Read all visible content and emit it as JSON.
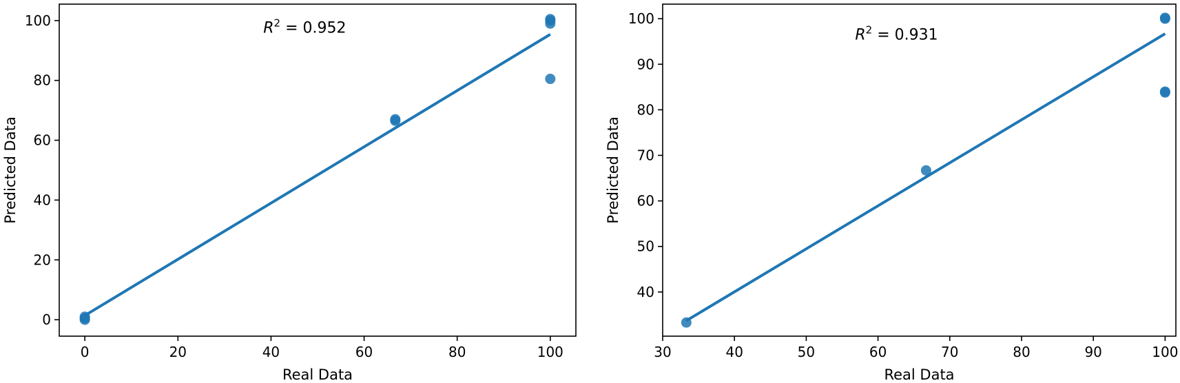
{
  "chart_data": [
    {
      "type": "scatter",
      "title": "",
      "xlabel": "Real Data",
      "ylabel": "Predicted Data",
      "xlim": [
        -5.5,
        105.5
      ],
      "ylim": [
        -5.5,
        105.5
      ],
      "xticks": [
        0,
        20,
        40,
        60,
        80,
        100
      ],
      "yticks": [
        0,
        20,
        40,
        60,
        80,
        100
      ],
      "annotation": {
        "prefix": "R",
        "exponent": "2",
        "text": " = 0.952"
      },
      "grid": false,
      "legend": "none",
      "series": [
        {
          "kind": "scatter",
          "color": "#1f77b4",
          "points": [
            [
              0,
              0
            ],
            [
              0,
              0.5
            ],
            [
              0,
              1
            ],
            [
              66.7,
              66.5
            ],
            [
              66.7,
              67
            ],
            [
              100,
              80.5
            ],
            [
              100,
              99
            ],
            [
              100,
              100
            ],
            [
              100,
              100.5
            ]
          ]
        },
        {
          "kind": "line",
          "color": "#1f77b4",
          "points": [
            [
              0,
              1.4
            ],
            [
              100,
              95.4
            ]
          ]
        }
      ]
    },
    {
      "type": "scatter",
      "title": "",
      "xlabel": "Real Data",
      "ylabel": "Predicted Data",
      "xlim": [
        30,
        101.5
      ],
      "ylim": [
        30.3,
        103.2
      ],
      "xticks": [
        30,
        40,
        50,
        60,
        70,
        80,
        90,
        100
      ],
      "yticks": [
        40,
        50,
        60,
        70,
        80,
        90,
        100
      ],
      "annotation": {
        "prefix": "R",
        "exponent": "2",
        "text": " = 0.931"
      },
      "grid": false,
      "legend": "none",
      "series": [
        {
          "kind": "scatter",
          "color": "#1f77b4",
          "points": [
            [
              33.3,
              33.3
            ],
            [
              66.7,
              66.7
            ],
            [
              100,
              84
            ],
            [
              100,
              83.8
            ],
            [
              100,
              100
            ],
            [
              100,
              100.2
            ]
          ]
        },
        {
          "kind": "line",
          "color": "#1f77b4",
          "points": [
            [
              33.3,
              33.7
            ],
            [
              100,
              96.7
            ]
          ]
        }
      ]
    }
  ]
}
